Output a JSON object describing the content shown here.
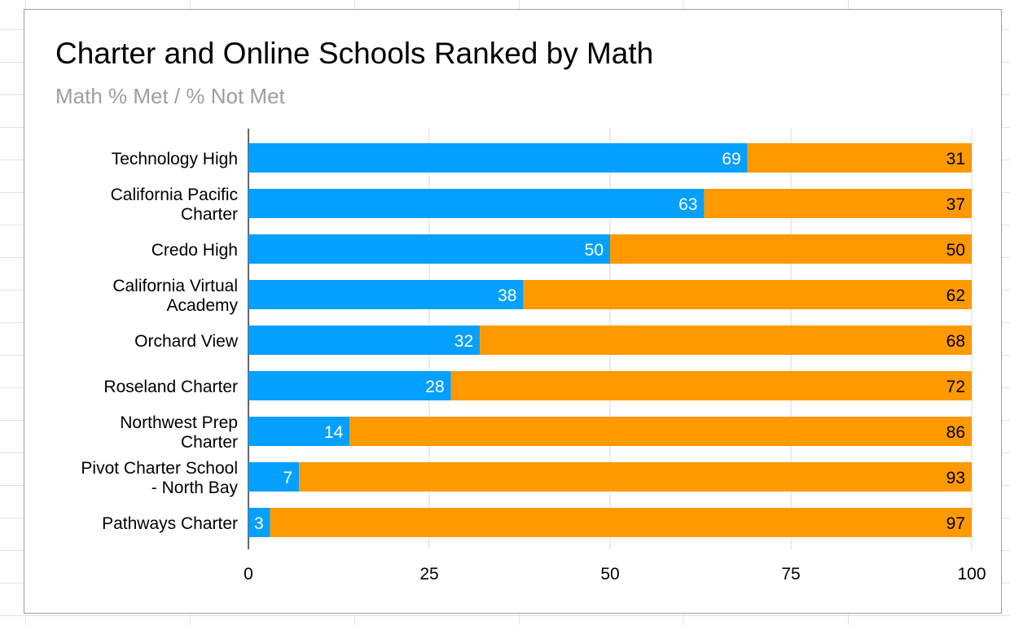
{
  "chart_data": {
    "type": "bar",
    "orientation": "horizontal",
    "stacked": true,
    "title": "Charter and Online Schools Ranked by Math",
    "subtitle": "Math % Met / % Not Met",
    "xlabel": "",
    "ylabel": "",
    "xlim": [
      0,
      100
    ],
    "x_ticks": [
      "0",
      "25",
      "50",
      "75",
      "100"
    ],
    "grid": "vertical",
    "legend": "none",
    "categories": [
      [
        "Technology High"
      ],
      [
        "California Pacific",
        "Charter"
      ],
      [
        "Credo High"
      ],
      [
        "California Virtual",
        "Academy"
      ],
      [
        "Orchard View"
      ],
      [
        "Roseland Charter"
      ],
      [
        "Northwest Prep",
        "Charter"
      ],
      [
        "Pivot Charter School",
        "- North Bay"
      ],
      [
        "Pathways Charter"
      ]
    ],
    "series": [
      {
        "values": [
          69,
          63,
          50,
          38,
          32,
          28,
          14,
          7,
          3
        ],
        "color": "#04a0ff"
      },
      {
        "values": [
          31,
          37,
          50,
          62,
          68,
          72,
          86,
          93,
          97
        ],
        "color": "#ff9900"
      }
    ]
  }
}
